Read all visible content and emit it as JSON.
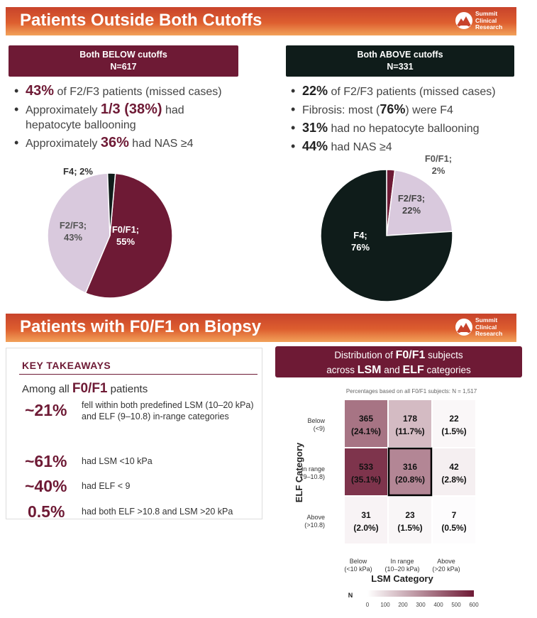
{
  "logo": {
    "line1": "Summit",
    "line2": "Clinical",
    "line3": "Research"
  },
  "section1": {
    "title": "Patients Outside Both Cutoffs",
    "left": {
      "header_line1": "Both BELOW cutoffs",
      "header_line2": "N=617",
      "bullets": [
        {
          "pre": "",
          "big": "43%",
          "post": " of F2/F3 patients (missed cases)"
        },
        {
          "pre": "Approximately ",
          "big": "1/3 (38%)",
          "post": " had hepatocyte ballooning"
        },
        {
          "pre": "Approximately ",
          "big": "36%",
          "post": " had NAS ≥4"
        }
      ]
    },
    "right": {
      "header_line1": "Both ABOVE cutoffs",
      "header_line2": "N=331",
      "bullets": [
        {
          "pre": "",
          "big": "22%",
          "post": " of F2/F3 patients (missed cases)"
        },
        {
          "pre": "Fibrosis: most (",
          "big": "76%",
          "post": ") were F4"
        },
        {
          "pre": "",
          "big": "31%",
          "post": " had no hepatocyte ballooning"
        },
        {
          "pre": "",
          "big": "44%",
          "post": " had NAS ≥4"
        }
      ]
    }
  },
  "section2": {
    "title": "Patients with F0/F1 on Biopsy",
    "takeaways": {
      "title": "KEY TAKEAWAYS",
      "among_pre": "Among all ",
      "among_big": "F0/F1",
      "among_post": " patients",
      "items": [
        {
          "pct": "~21%",
          "text": "fell within both predefined LSM (10–20 kPa) and ELF (9–10.8) in-range categories"
        },
        {
          "pct": "~61%",
          "text": "had LSM <10 kPa"
        },
        {
          "pct": "~40%",
          "text": "had ELF < 9"
        },
        {
          "pct": "0.5%",
          "text": "had both ELF >10.8 and LSM >20 kPa"
        }
      ]
    },
    "distribution": {
      "line1_pre": "Distribution of ",
      "line1_big": "F0/F1",
      "line1_post": " subjects",
      "line2_pre": "across ",
      "line2_big1": "LSM",
      "line2_mid": " and ",
      "line2_big2": "ELF",
      "line2_post": " categories"
    }
  },
  "chart_data": [
    {
      "type": "pie",
      "labels": [
        "F0/F1",
        "F2/F3",
        "F4"
      ],
      "values": [
        55,
        43,
        2
      ],
      "slice_labels": [
        "F0/F1;",
        "F2/F3;",
        "F4; 2%"
      ],
      "slice_values": [
        "55%",
        "43%",
        ""
      ],
      "colors": [
        "#6e1a35",
        "#d9c9dd",
        "#0f1c1a"
      ]
    },
    {
      "type": "pie",
      "labels": [
        "F0/F1",
        "F2/F3",
        "F4"
      ],
      "values": [
        2,
        22,
        76
      ],
      "slice_labels": [
        "F0/F1;",
        "F2/F3;",
        "F4;"
      ],
      "slice_values": [
        "2%",
        "22%",
        "76%"
      ],
      "colors": [
        "#6e1a35",
        "#d9c9dd",
        "#0f1c1a"
      ]
    },
    {
      "type": "heatmap",
      "subtitle": "Percentages based on all F0/F1 subjects: N = 1,517",
      "xlabel": "LSM Category",
      "ylabel": "ELF Category",
      "x_categories": [
        {
          "line1": "Below",
          "line2": "(<10 kPa)"
        },
        {
          "line1": "In range",
          "line2": "(10–20 kPa)"
        },
        {
          "line1": "Above",
          "line2": "(>20 kPa)"
        }
      ],
      "y_categories": [
        {
          "line1": "Below",
          "line2": "(<9)"
        },
        {
          "line1": "In range",
          "line2": "(9–10.8)"
        },
        {
          "line1": "Above",
          "line2": "(>10.8)"
        }
      ],
      "cells": [
        [
          {
            "n": "365",
            "pct": "(24.1%)",
            "value": 365
          },
          {
            "n": "178",
            "pct": "(11.7%)",
            "value": 178
          },
          {
            "n": "22",
            "pct": "(1.5%)",
            "value": 22
          }
        ],
        [
          {
            "n": "533",
            "pct": "(35.1%)",
            "value": 533
          },
          {
            "n": "316",
            "pct": "(20.8%)",
            "value": 316
          },
          {
            "n": "42",
            "pct": "(2.8%)",
            "value": 42
          }
        ],
        [
          {
            "n": "31",
            "pct": "(2.0%)",
            "value": 31
          },
          {
            "n": "23",
            "pct": "(1.5%)",
            "value": 23
          },
          {
            "n": "7",
            "pct": "(0.5%)",
            "value": 7
          }
        ]
      ],
      "highlight_cell": [
        1,
        1
      ],
      "color_scale": {
        "label": "N",
        "min": 0,
        "max": 600,
        "ticks": [
          "0",
          "100",
          "200",
          "300",
          "400",
          "500",
          "600"
        ],
        "low_color": "#ffffff",
        "high_color": "#6e1a35"
      }
    }
  ]
}
